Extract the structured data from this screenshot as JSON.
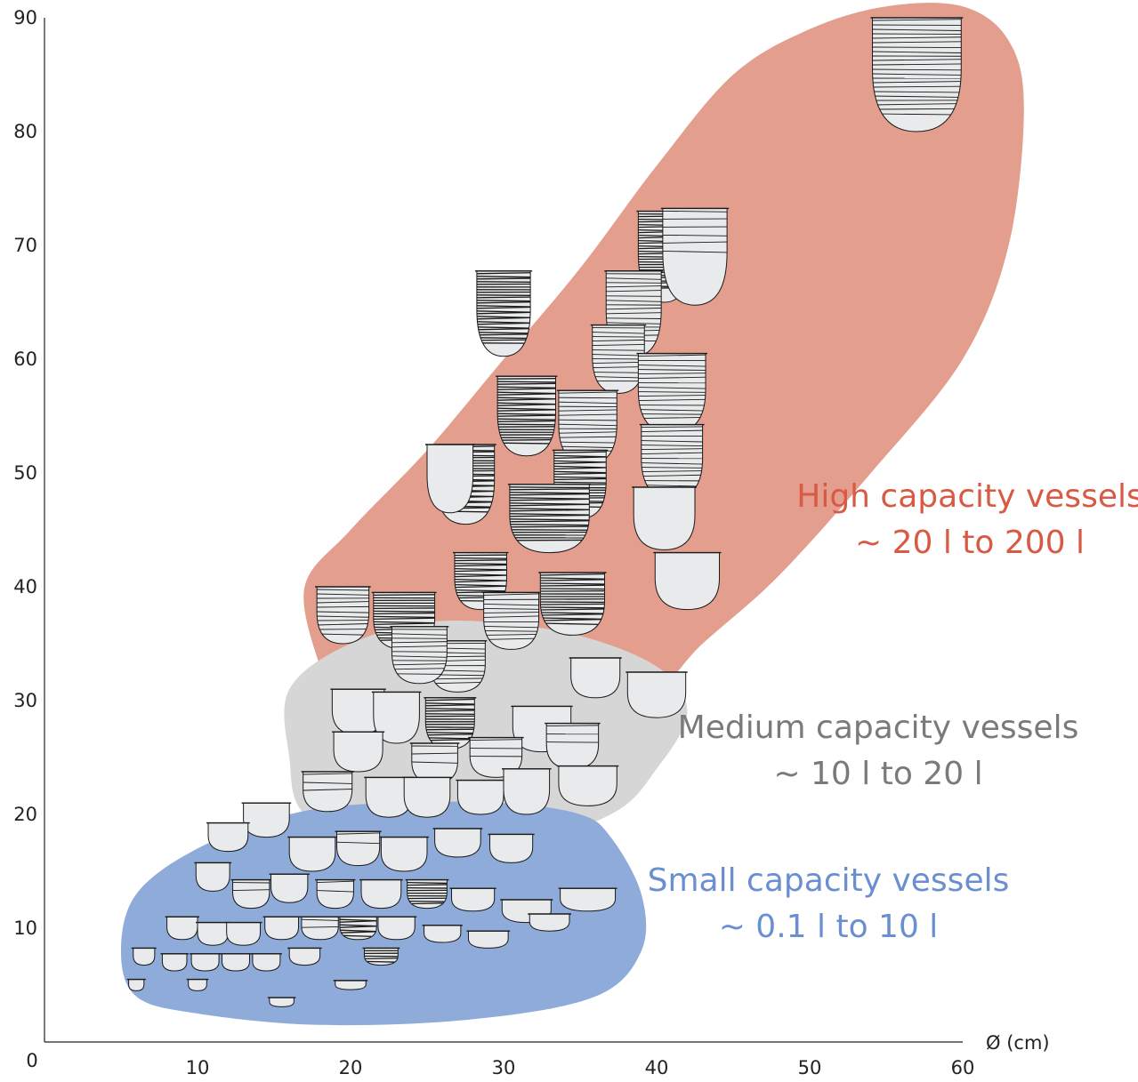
{
  "chart_data": {
    "type": "scatter",
    "title": "",
    "xlabel": "Ø (cm)",
    "ylabel": "",
    "xlim": [
      0,
      60
    ],
    "ylim": [
      0,
      90
    ],
    "x_ticks": [
      0,
      10,
      20,
      30,
      40,
      50,
      60
    ],
    "y_ticks": [
      10,
      20,
      30,
      40,
      50,
      60,
      70,
      80,
      90
    ],
    "grid": false,
    "groups": [
      {
        "name": "High capacity vessels",
        "range": "~ 20 l to 200 l",
        "color": "#e39e8d",
        "text_color": "#d85a45",
        "outline": [
          [
            18,
            33
          ],
          [
            17,
            40
          ],
          [
            20,
            45
          ],
          [
            25,
            52
          ],
          [
            30,
            60
          ],
          [
            35,
            68
          ],
          [
            40,
            77
          ],
          [
            45,
            85
          ],
          [
            50,
            89
          ],
          [
            55,
            91
          ],
          [
            60,
            91
          ],
          [
            63,
            88
          ],
          [
            64,
            82
          ],
          [
            63,
            70
          ],
          [
            60,
            60
          ],
          [
            54,
            50
          ],
          [
            48,
            41
          ],
          [
            43,
            35
          ],
          [
            39,
            30
          ],
          [
            31,
            28
          ],
          [
            24,
            28
          ],
          [
            19,
            31
          ]
        ]
      },
      {
        "name": "Medium capacity vessels",
        "range": "~ 10 l to 20 l",
        "color": "#d6d6d6",
        "text_color": "#7a7a7a",
        "outline": [
          [
            16,
            25
          ],
          [
            16,
            31
          ],
          [
            20,
            35
          ],
          [
            26,
            37
          ],
          [
            34,
            36
          ],
          [
            40,
            33
          ],
          [
            42,
            29
          ],
          [
            40,
            24
          ],
          [
            37,
            20
          ],
          [
            30,
            17
          ],
          [
            22,
            17
          ],
          [
            17,
            20
          ]
        ]
      },
      {
        "name": "Small capacity vessels",
        "range": "~ 0.1 l to 10 l",
        "color": "#8fabd9",
        "text_color": "#6a8fd0",
        "outline": [
          [
            5,
            8
          ],
          [
            6,
            4
          ],
          [
            10,
            2.5
          ],
          [
            18,
            1.5
          ],
          [
            28,
            2
          ],
          [
            36,
            4
          ],
          [
            39,
            8
          ],
          [
            39,
            13
          ],
          [
            37,
            18
          ],
          [
            35,
            20
          ],
          [
            30,
            21
          ],
          [
            22,
            21
          ],
          [
            16,
            20
          ],
          [
            10,
            17
          ],
          [
            6,
            13
          ]
        ]
      }
    ],
    "vessels": [
      {
        "x": 57,
        "y": 85,
        "h": 10,
        "w": 5.8,
        "pattern": "striped"
      },
      {
        "x": 40.5,
        "y": 69,
        "h": 8,
        "w": 3.4,
        "pattern": "dense"
      },
      {
        "x": 42.5,
        "y": 69,
        "h": 8.5,
        "w": 4.2,
        "pattern": "light"
      },
      {
        "x": 38.5,
        "y": 64,
        "h": 7.5,
        "w": 3.6,
        "pattern": "striped"
      },
      {
        "x": 30,
        "y": 64,
        "h": 7.5,
        "w": 3.5,
        "pattern": "dense"
      },
      {
        "x": 37.5,
        "y": 60,
        "h": 6,
        "w": 3.4,
        "pattern": "striped"
      },
      {
        "x": 41,
        "y": 57,
        "h": 7,
        "w": 4.4,
        "pattern": "striped"
      },
      {
        "x": 31.5,
        "y": 55,
        "h": 7,
        "w": 3.8,
        "pattern": "dense"
      },
      {
        "x": 35.5,
        "y": 54,
        "h": 6.5,
        "w": 3.8,
        "pattern": "striped"
      },
      {
        "x": 41,
        "y": 51,
        "h": 6.5,
        "w": 4.0,
        "pattern": "striped"
      },
      {
        "x": 27.5,
        "y": 49,
        "h": 7,
        "w": 3.8,
        "pattern": "dense"
      },
      {
        "x": 35,
        "y": 49,
        "h": 6,
        "w": 3.4,
        "pattern": "dense"
      },
      {
        "x": 26.5,
        "y": 49.5,
        "h": 6,
        "w": 3.0,
        "pattern": "none"
      },
      {
        "x": 40.5,
        "y": 46,
        "h": 5.5,
        "w": 4.0,
        "pattern": "none"
      },
      {
        "x": 33,
        "y": 46,
        "h": 6,
        "w": 5.2,
        "pattern": "dense"
      },
      {
        "x": 42,
        "y": 40.5,
        "h": 5,
        "w": 4.2,
        "pattern": "none"
      },
      {
        "x": 28.5,
        "y": 40.5,
        "h": 5,
        "w": 3.4,
        "pattern": "dense"
      },
      {
        "x": 34.5,
        "y": 38.5,
        "h": 5.5,
        "w": 4.2,
        "pattern": "dense"
      },
      {
        "x": 19.5,
        "y": 37.5,
        "h": 5,
        "w": 3.4,
        "pattern": "striped"
      },
      {
        "x": 23.5,
        "y": 37,
        "h": 5,
        "w": 4.0,
        "pattern": "dense"
      },
      {
        "x": 30.5,
        "y": 37,
        "h": 5,
        "w": 3.6,
        "pattern": "striped"
      },
      {
        "x": 27,
        "y": 33,
        "h": 4.5,
        "w": 3.6,
        "pattern": "striped"
      },
      {
        "x": 36,
        "y": 32,
        "h": 3.5,
        "w": 3.2,
        "pattern": "none"
      },
      {
        "x": 40,
        "y": 30.5,
        "h": 4,
        "w": 3.8,
        "pattern": "none"
      },
      {
        "x": 24.5,
        "y": 34,
        "h": 5,
        "w": 3.6,
        "pattern": "striped"
      },
      {
        "x": 20.5,
        "y": 29,
        "h": 4,
        "w": 3.4,
        "pattern": "none"
      },
      {
        "x": 23,
        "y": 28.5,
        "h": 4.5,
        "w": 3.0,
        "pattern": "none"
      },
      {
        "x": 26.5,
        "y": 28,
        "h": 4.5,
        "w": 3.2,
        "pattern": "dense"
      },
      {
        "x": 32.5,
        "y": 27.5,
        "h": 4,
        "w": 3.8,
        "pattern": "none"
      },
      {
        "x": 34.5,
        "y": 26,
        "h": 4,
        "w": 3.4,
        "pattern": "light"
      },
      {
        "x": 20.5,
        "y": 25.5,
        "h": 3.5,
        "w": 3.2,
        "pattern": "none"
      },
      {
        "x": 25.5,
        "y": 24.5,
        "h": 3.5,
        "w": 3.0,
        "pattern": "light"
      },
      {
        "x": 29.5,
        "y": 25,
        "h": 3.5,
        "w": 3.4,
        "pattern": "light"
      },
      {
        "x": 18.5,
        "y": 22,
        "h": 3.5,
        "w": 3.2,
        "pattern": "light"
      },
      {
        "x": 22.5,
        "y": 21.5,
        "h": 3.5,
        "w": 3.0,
        "pattern": "none"
      },
      {
        "x": 25,
        "y": 21.5,
        "h": 3.5,
        "w": 3.0,
        "pattern": "none"
      },
      {
        "x": 28.5,
        "y": 21.5,
        "h": 3,
        "w": 3.0,
        "pattern": "none"
      },
      {
        "x": 31.5,
        "y": 22,
        "h": 4,
        "w": 3.0,
        "pattern": "none"
      },
      {
        "x": 35.5,
        "y": 22.5,
        "h": 3.5,
        "w": 3.8,
        "pattern": "none"
      },
      {
        "x": 14.5,
        "y": 19.5,
        "h": 3,
        "w": 3.0,
        "pattern": "none"
      },
      {
        "x": 17.5,
        "y": 16.5,
        "h": 3,
        "w": 3.0,
        "pattern": "none"
      },
      {
        "x": 20.5,
        "y": 17,
        "h": 3,
        "w": 2.8,
        "pattern": "light"
      },
      {
        "x": 23.5,
        "y": 16.5,
        "h": 3,
        "w": 3.0,
        "pattern": "none"
      },
      {
        "x": 27,
        "y": 17.5,
        "h": 2.5,
        "w": 3.0,
        "pattern": "none"
      },
      {
        "x": 30.5,
        "y": 17,
        "h": 2.5,
        "w": 2.8,
        "pattern": "none"
      },
      {
        "x": 12,
        "y": 18,
        "h": 2.5,
        "w": 2.6,
        "pattern": "none"
      },
      {
        "x": 11,
        "y": 14.5,
        "h": 2.5,
        "w": 2.2,
        "pattern": "none"
      },
      {
        "x": 13.5,
        "y": 13,
        "h": 2.5,
        "w": 2.4,
        "pattern": "light"
      },
      {
        "x": 16,
        "y": 13.5,
        "h": 2.5,
        "w": 2.4,
        "pattern": "none"
      },
      {
        "x": 19,
        "y": 13,
        "h": 2.5,
        "w": 2.4,
        "pattern": "light"
      },
      {
        "x": 22,
        "y": 13,
        "h": 2.5,
        "w": 2.6,
        "pattern": "none"
      },
      {
        "x": 25,
        "y": 13,
        "h": 2.5,
        "w": 2.6,
        "pattern": "dense"
      },
      {
        "x": 28,
        "y": 12.5,
        "h": 2,
        "w": 2.8,
        "pattern": "none"
      },
      {
        "x": 31.5,
        "y": 11.5,
        "h": 2,
        "w": 3.2,
        "pattern": "none"
      },
      {
        "x": 35.5,
        "y": 12.5,
        "h": 2,
        "w": 3.6,
        "pattern": "none"
      },
      {
        "x": 33,
        "y": 10.5,
        "h": 1.5,
        "w": 2.6,
        "pattern": "none"
      },
      {
        "x": 9,
        "y": 10,
        "h": 2,
        "w": 2.0,
        "pattern": "none"
      },
      {
        "x": 11,
        "y": 9.5,
        "h": 2,
        "w": 2.0,
        "pattern": "none"
      },
      {
        "x": 13,
        "y": 9.5,
        "h": 2,
        "w": 2.2,
        "pattern": "none"
      },
      {
        "x": 15.5,
        "y": 10,
        "h": 2,
        "w": 2.2,
        "pattern": "none"
      },
      {
        "x": 18,
        "y": 10,
        "h": 2,
        "w": 2.4,
        "pattern": "light"
      },
      {
        "x": 20.5,
        "y": 10,
        "h": 2,
        "w": 2.4,
        "pattern": "dense"
      },
      {
        "x": 23,
        "y": 10,
        "h": 2,
        "w": 2.4,
        "pattern": "none"
      },
      {
        "x": 26,
        "y": 9.5,
        "h": 1.5,
        "w": 2.4,
        "pattern": "none"
      },
      {
        "x": 29,
        "y": 9,
        "h": 1.5,
        "w": 2.6,
        "pattern": "none"
      },
      {
        "x": 6.5,
        "y": 7.5,
        "h": 1.5,
        "w": 1.4,
        "pattern": "none"
      },
      {
        "x": 8.5,
        "y": 7,
        "h": 1.5,
        "w": 1.6,
        "pattern": "none"
      },
      {
        "x": 10.5,
        "y": 7,
        "h": 1.5,
        "w": 1.8,
        "pattern": "none"
      },
      {
        "x": 12.5,
        "y": 7,
        "h": 1.5,
        "w": 1.8,
        "pattern": "none"
      },
      {
        "x": 14.5,
        "y": 7,
        "h": 1.5,
        "w": 1.8,
        "pattern": "none"
      },
      {
        "x": 17,
        "y": 7.5,
        "h": 1.5,
        "w": 2.0,
        "pattern": "none"
      },
      {
        "x": 22,
        "y": 7.5,
        "h": 1.5,
        "w": 2.2,
        "pattern": "dense"
      },
      {
        "x": 6,
        "y": 5,
        "h": 1,
        "w": 1.0,
        "pattern": "none"
      },
      {
        "x": 10,
        "y": 5,
        "h": 1,
        "w": 1.2,
        "pattern": "none"
      },
      {
        "x": 15.5,
        "y": 3.5,
        "h": 0.8,
        "w": 1.6,
        "pattern": "none"
      },
      {
        "x": 20,
        "y": 5,
        "h": 0.8,
        "w": 2.0,
        "pattern": "none"
      }
    ]
  }
}
